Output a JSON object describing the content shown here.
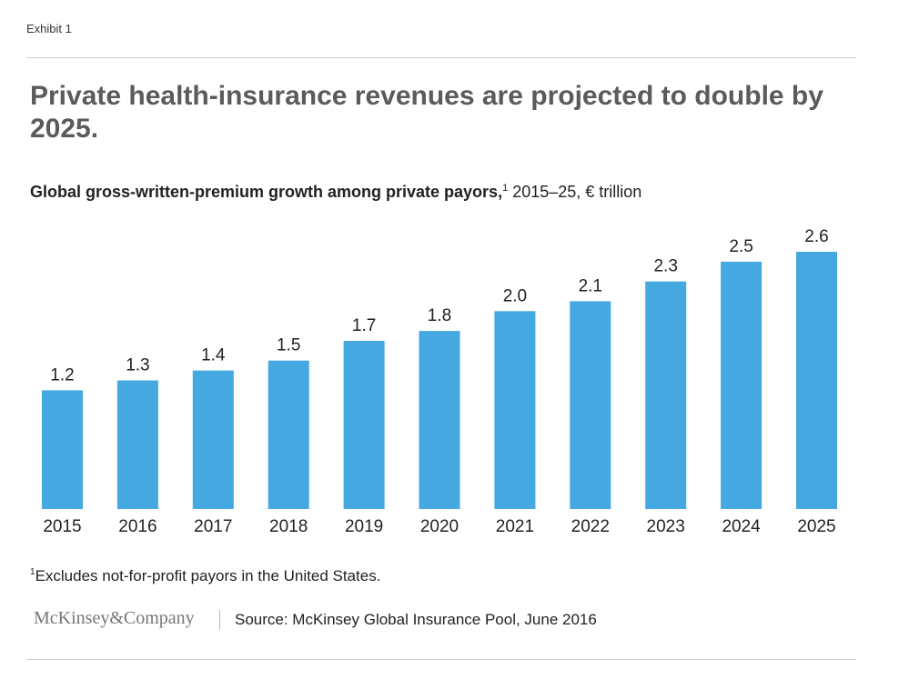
{
  "exhibit_label": "Exhibit 1",
  "headline": "Private health-insurance revenues are projected to double by 2025.",
  "subtitle": {
    "bold": "Global gross-written-premium growth among private payors,",
    "footnote_marker": "1",
    "rest": " 2015–25, € trillion"
  },
  "footnote": {
    "marker": "1",
    "text": "Excludes not-for-profit payors in the United States."
  },
  "logo_text": "McKinsey&Company",
  "source": "Source: McKinsey Global Insurance Pool, June 2016",
  "colors": {
    "bar": "#45a8e0",
    "headline": "#5b5b5b",
    "text": "#222222"
  },
  "chart_data": {
    "type": "bar",
    "title": "Global gross-written-premium growth among private payors, 2015–25, € trillion",
    "categories": [
      "2015",
      "2016",
      "2017",
      "2018",
      "2019",
      "2020",
      "2021",
      "2022",
      "2023",
      "2024",
      "2025"
    ],
    "values": [
      1.2,
      1.3,
      1.4,
      1.5,
      1.7,
      1.8,
      2.0,
      2.1,
      2.3,
      2.5,
      2.6
    ],
    "value_labels": [
      "1.2",
      "1.3",
      "1.4",
      "1.5",
      "1.7",
      "1.8",
      "2.0",
      "2.1",
      "2.3",
      "2.5",
      "2.6"
    ],
    "xlabel": "",
    "ylabel": "",
    "ylim": [
      0,
      2.6
    ],
    "grid": false,
    "legend": "none"
  }
}
